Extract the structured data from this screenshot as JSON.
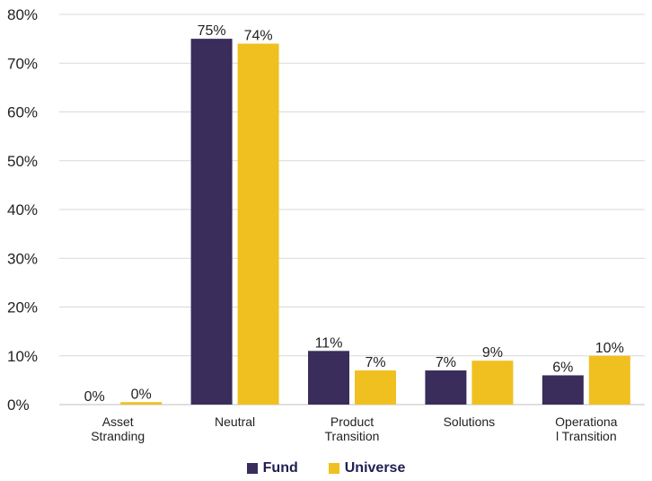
{
  "chart_data": {
    "type": "bar",
    "categories": [
      [
        "Asset",
        "Stranding"
      ],
      [
        "Neutral"
      ],
      [
        "Product",
        "Transition"
      ],
      [
        "Solutions"
      ],
      [
        "Operationa",
        "l Transition"
      ]
    ],
    "series": [
      {
        "name": "Fund",
        "color": "#3a2d5c",
        "values": [
          0,
          75,
          11,
          7,
          6
        ],
        "labels": [
          "0%",
          "75%",
          "11%",
          "7%",
          "6%"
        ]
      },
      {
        "name": "Universe",
        "color": "#f0c020",
        "values": [
          0.5,
          74,
          7,
          9,
          10
        ],
        "labels": [
          "0%",
          "74%",
          "7%",
          "9%",
          "10%"
        ]
      }
    ],
    "ylim": [
      0,
      80
    ],
    "yticks": [
      "0%",
      "10%",
      "20%",
      "30%",
      "40%",
      "50%",
      "60%",
      "70%",
      "80%"
    ],
    "grid": true,
    "legend_position": "bottom"
  }
}
